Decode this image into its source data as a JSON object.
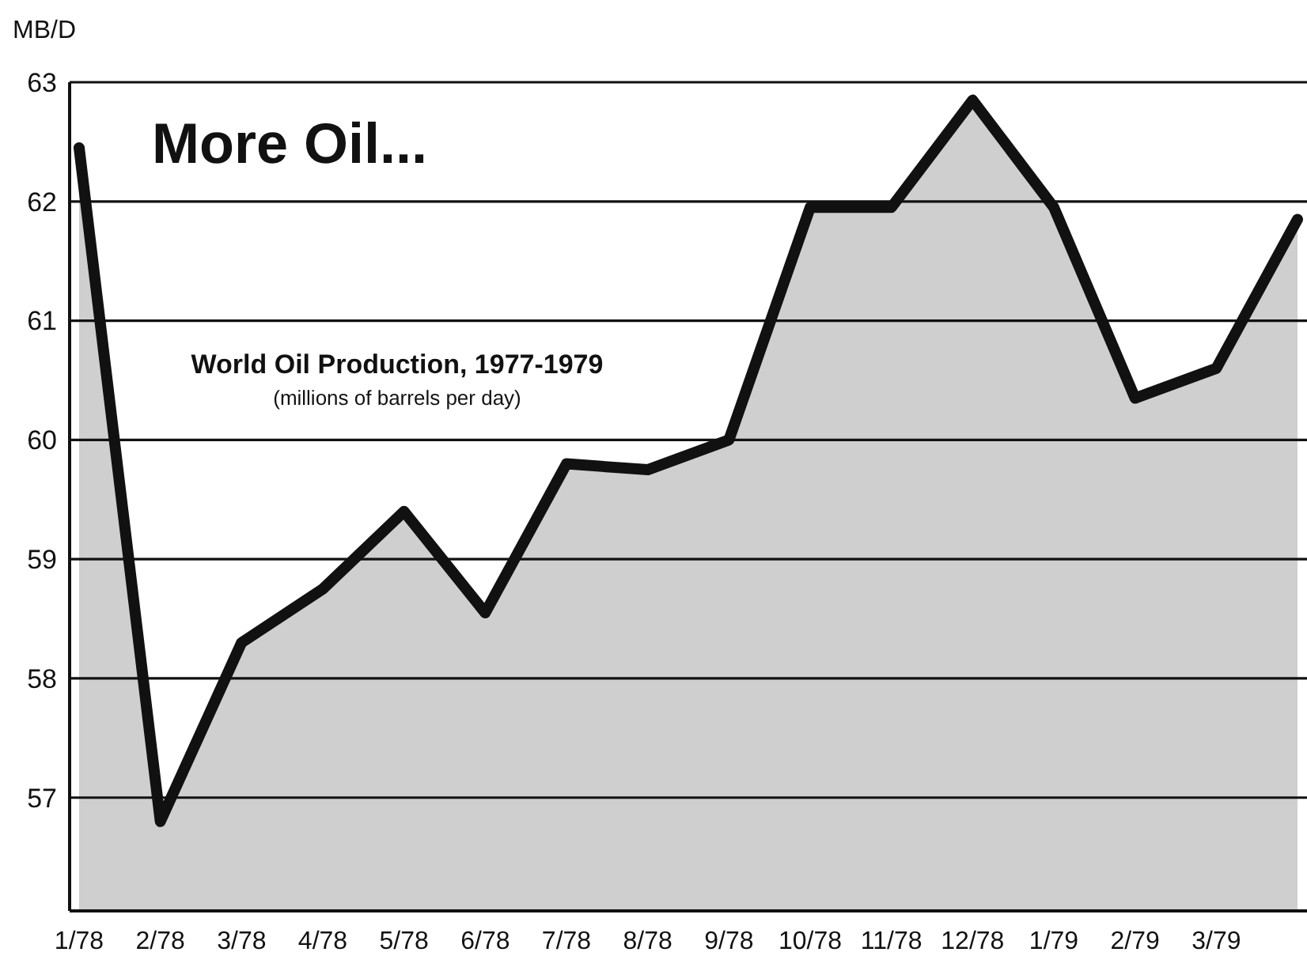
{
  "chart_data": {
    "type": "area",
    "title": "More Oil...",
    "subtitle": "World Oil Production, 1977-1979",
    "ylabel": "MB/D",
    "annotations": [
      "(millions of barrels per day)"
    ],
    "categories": [
      "1/78",
      "2/78",
      "3/78",
      "4/78",
      "5/78",
      "6/78",
      "7/78",
      "8/78",
      "9/78",
      "10/78",
      "11/78",
      "12/78",
      "1/79",
      "2/79",
      "3/79",
      null
    ],
    "series": [
      {
        "color": "#111111",
        "values": [
          62.45,
          56.8,
          58.3,
          58.75,
          59.4,
          58.55,
          59.8,
          59.75,
          60.0,
          61.95,
          61.95,
          62.85,
          61.95,
          60.35,
          60.6,
          61.85
        ]
      }
    ],
    "ylim": [
      56.05,
      63
    ],
    "yticks": [
      57,
      58,
      59,
      60,
      61,
      62,
      63
    ],
    "grid": "y",
    "marker": "none",
    "line_style": "solid"
  }
}
